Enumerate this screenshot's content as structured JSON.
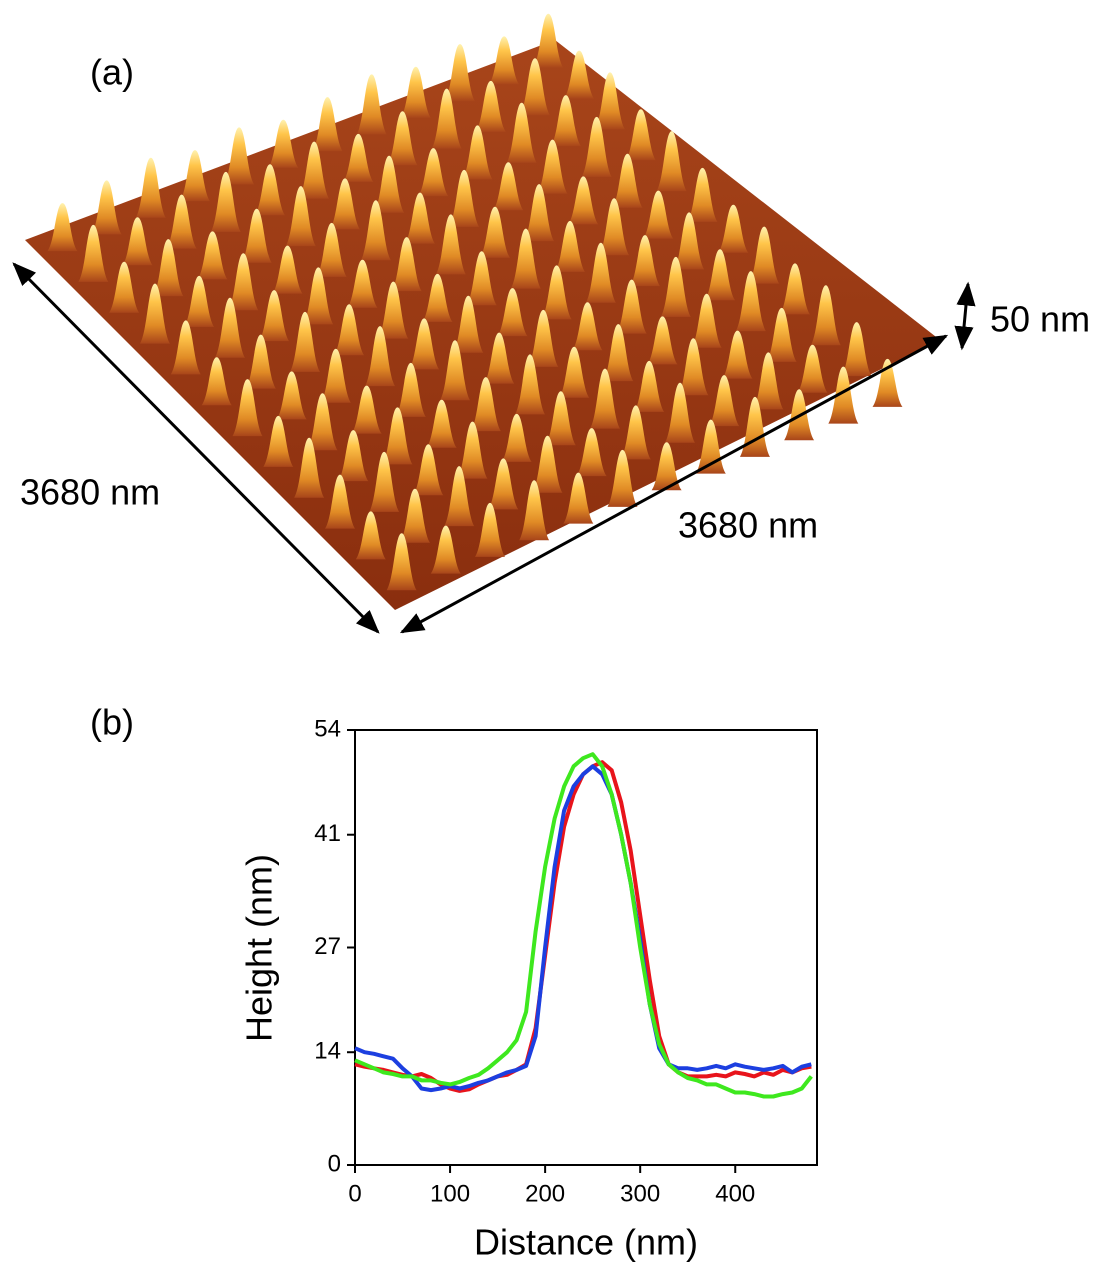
{
  "panel_a": {
    "label": "(a)",
    "depth_label": "3680 nm",
    "width_label": "3680 nm",
    "height_label": "50 nm"
  },
  "chart_data": {
    "type": "line",
    "label": "(b)",
    "x_label": "Distance (nm)",
    "y_label": "Height (nm)",
    "x": [
      0,
      10,
      20,
      30,
      40,
      50,
      60,
      70,
      80,
      90,
      100,
      110,
      120,
      130,
      140,
      150,
      160,
      170,
      180,
      190,
      200,
      210,
      220,
      230,
      240,
      250,
      260,
      270,
      280,
      290,
      300,
      310,
      320,
      330,
      340,
      350,
      360,
      370,
      380,
      390,
      400,
      410,
      420,
      430,
      440,
      450,
      460,
      470,
      480
    ],
    "series": [
      {
        "color": "#e8141b",
        "values": [
          12.5,
          12.2,
          12,
          11.8,
          11.5,
          11.2,
          11,
          11.3,
          10.8,
          10,
          9.5,
          9.2,
          9.4,
          10,
          10.5,
          11,
          11.2,
          11.8,
          12.5,
          17,
          26,
          35,
          42,
          46,
          48.5,
          49.5,
          50,
          49,
          45,
          39,
          31,
          23,
          16,
          12.5,
          11.5,
          11,
          11,
          11,
          11.2,
          11,
          11.5,
          11.3,
          11,
          11.5,
          11.2,
          11.8,
          11.5,
          12,
          12.2
        ]
      },
      {
        "color": "#1c3fe0",
        "values": [
          14.5,
          14,
          13.8,
          13.5,
          13.2,
          12,
          11,
          9.5,
          9.3,
          9.5,
          9.8,
          9.5,
          9.8,
          10.2,
          10.5,
          11,
          11.5,
          11.8,
          12.3,
          16,
          27,
          37,
          44,
          47,
          48.5,
          49.5,
          48.5,
          46,
          41,
          35,
          28,
          20,
          14.5,
          12.5,
          12,
          12,
          11.8,
          12,
          12.3,
          12,
          12.5,
          12.2,
          12,
          11.8,
          12,
          12.3,
          11.5,
          12.2,
          12.5
        ]
      },
      {
        "color": "#3ee81e",
        "values": [
          13,
          12.5,
          12,
          11.5,
          11.3,
          11,
          11,
          10.5,
          10.5,
          10.2,
          10,
          10.3,
          10.8,
          11.2,
          12,
          13,
          14,
          15.5,
          19,
          29,
          37,
          43,
          47,
          49.5,
          50.5,
          51,
          49.5,
          46,
          41,
          35,
          27,
          20,
          15,
          12.5,
          11.5,
          10.8,
          10.5,
          10,
          10,
          9.5,
          9,
          9,
          8.8,
          8.5,
          8.5,
          8.8,
          9,
          9.5,
          11
        ]
      }
    ],
    "xlim": [
      0,
      486
    ],
    "ylim": [
      0,
      54
    ],
    "xticks": [
      0,
      100,
      200,
      300,
      400
    ],
    "yticks": [
      0,
      14,
      27,
      41,
      54
    ]
  }
}
